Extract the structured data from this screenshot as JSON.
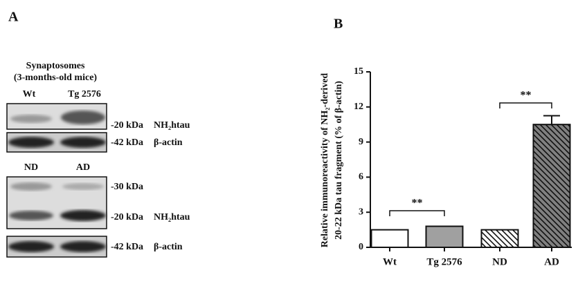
{
  "panel_a": {
    "label": "A",
    "header": [
      "Synaptosomes",
      "(3-months-old mice)"
    ],
    "blot1": {
      "lanes": [
        "Wt",
        "Tg 2576"
      ],
      "markers": [
        "-20 kDa",
        "-42 kDa"
      ],
      "proteins": [
        "NH₂htau",
        "β-actin"
      ]
    },
    "blot2": {
      "lanes": [
        "ND",
        "AD"
      ],
      "markers": [
        "-30 kDa",
        "-20 kDa",
        "-42 kDa"
      ],
      "proteins": [
        "NH₂htau",
        "β-actin"
      ]
    }
  },
  "chart_data": {
    "type": "bar",
    "panel_label": "B",
    "ylabel": [
      "Relative immunoreactivity of NH₂-derived",
      "20-22 kDa tau fragment (% of β-actin)"
    ],
    "categories": [
      "Wt",
      "Tg 2576",
      "ND",
      "AD"
    ],
    "values": [
      1.5,
      1.8,
      1.5,
      10.5
    ],
    "errors": [
      null,
      null,
      null,
      0.75
    ],
    "colors": [
      "#ffffff",
      "#a0a0a0",
      "#ffffff",
      "#808080"
    ],
    "hatch": [
      false,
      false,
      true,
      true
    ],
    "annotations": [
      "**",
      "**"
    ],
    "ylim": [
      0,
      15
    ],
    "yticks": [
      0,
      3,
      6,
      9,
      12,
      15
    ],
    "grid": false
  }
}
